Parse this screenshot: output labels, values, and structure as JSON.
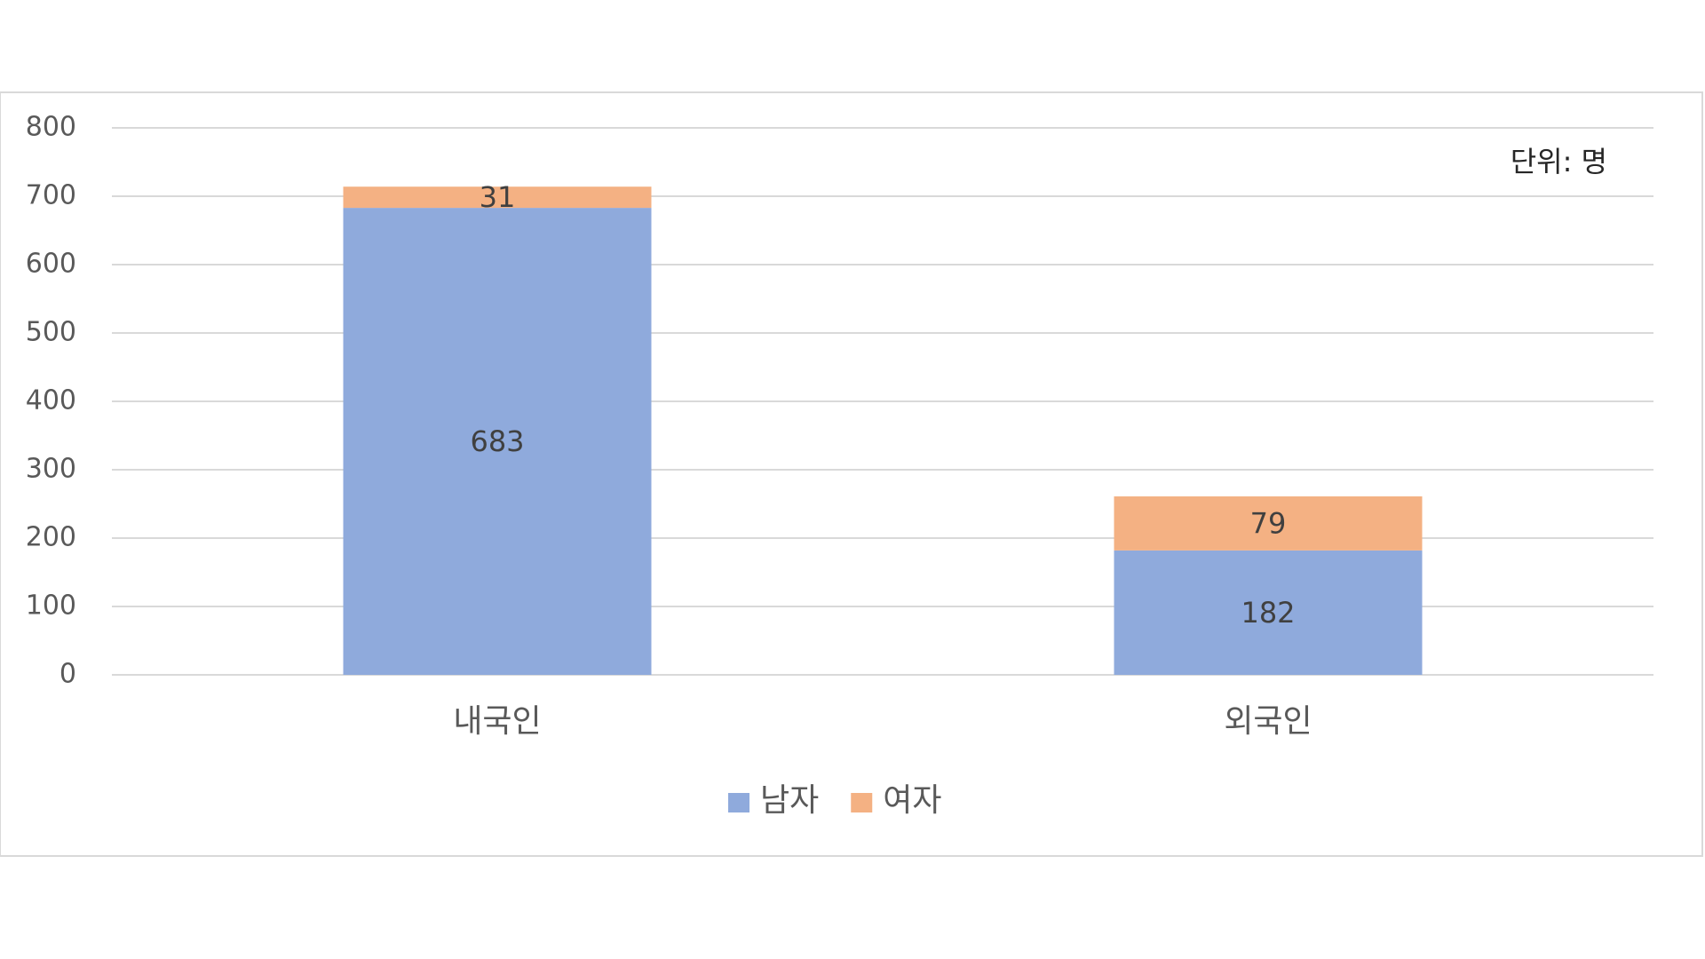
{
  "chart_data": {
    "type": "stacked_bar",
    "annotation": "단위: 명",
    "categories": [
      "내국인",
      "외국인"
    ],
    "series": [
      {
        "name": "남자",
        "color": "#8faadc",
        "values": [
          683,
          182
        ]
      },
      {
        "name": "여자",
        "color": "#f4b183",
        "values": [
          31,
          79
        ]
      }
    ],
    "ylim": [
      0,
      800
    ],
    "yticks": [
      0,
      100,
      200,
      300,
      400,
      500,
      600,
      700,
      800
    ],
    "grid": true,
    "legend": "bottom"
  }
}
